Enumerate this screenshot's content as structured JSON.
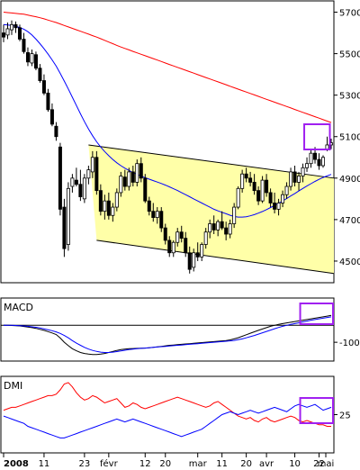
{
  "chart_data": [
    {
      "type": "candlestick",
      "panel": "price",
      "y_ticks": [
        4500,
        4700,
        4900,
        5100,
        5300,
        5500,
        5700
      ],
      "ylim": [
        4400,
        5750
      ],
      "bar_count": 82,
      "up_color": "#ffffff",
      "down_color": "#000000",
      "candles": [
        {
          "o": 5600,
          "h": 5640,
          "l": 5555,
          "c": 5580
        },
        {
          "o": 5590,
          "h": 5650,
          "l": 5570,
          "c": 5620
        },
        {
          "o": 5615,
          "h": 5660,
          "l": 5590,
          "c": 5640
        },
        {
          "o": 5640,
          "h": 5655,
          "l": 5600,
          "c": 5625
        },
        {
          "o": 5625,
          "h": 5640,
          "l": 5560,
          "c": 5570
        },
        {
          "o": 5570,
          "h": 5600,
          "l": 5500,
          "c": 5510
        },
        {
          "o": 5505,
          "h": 5530,
          "l": 5440,
          "c": 5460
        },
        {
          "o": 5455,
          "h": 5520,
          "l": 5440,
          "c": 5500
        },
        {
          "o": 5495,
          "h": 5510,
          "l": 5420,
          "c": 5430
        },
        {
          "o": 5430,
          "h": 5450,
          "l": 5360,
          "c": 5370
        },
        {
          "o": 5370,
          "h": 5400,
          "l": 5300,
          "c": 5310
        },
        {
          "o": 5310,
          "h": 5330,
          "l": 5220,
          "c": 5230
        },
        {
          "o": 5230,
          "h": 5260,
          "l": 5150,
          "c": 5160
        },
        {
          "o": 5150,
          "h": 5170,
          "l": 5080,
          "c": 5100
        },
        {
          "o": 5050,
          "h": 5070,
          "l": 4720,
          "c": 4750
        },
        {
          "o": 4760,
          "h": 4800,
          "l": 4520,
          "c": 4560
        },
        {
          "o": 4580,
          "h": 4880,
          "l": 4550,
          "c": 4850
        },
        {
          "o": 4860,
          "h": 4920,
          "l": 4830,
          "c": 4900
        },
        {
          "o": 4890,
          "h": 4950,
          "l": 4860,
          "c": 4870
        },
        {
          "o": 4870,
          "h": 4940,
          "l": 4790,
          "c": 4810
        },
        {
          "o": 4800,
          "h": 4920,
          "l": 4780,
          "c": 4900
        },
        {
          "o": 4900,
          "h": 4960,
          "l": 4870,
          "c": 4940
        },
        {
          "o": 4930,
          "h": 5030,
          "l": 4900,
          "c": 5000
        },
        {
          "o": 5000,
          "h": 5030,
          "l": 4820,
          "c": 4840
        },
        {
          "o": 4840,
          "h": 4870,
          "l": 4720,
          "c": 4740
        },
        {
          "o": 4740,
          "h": 4820,
          "l": 4700,
          "c": 4790
        },
        {
          "o": 4790,
          "h": 4830,
          "l": 4700,
          "c": 4720
        },
        {
          "o": 4720,
          "h": 4780,
          "l": 4690,
          "c": 4760
        },
        {
          "o": 4760,
          "h": 4850,
          "l": 4740,
          "c": 4830
        },
        {
          "o": 4830,
          "h": 4930,
          "l": 4810,
          "c": 4910
        },
        {
          "o": 4905,
          "h": 4940,
          "l": 4840,
          "c": 4860
        },
        {
          "o": 4860,
          "h": 4950,
          "l": 4840,
          "c": 4930
        },
        {
          "o": 4930,
          "h": 4960,
          "l": 4860,
          "c": 4880
        },
        {
          "o": 4880,
          "h": 4990,
          "l": 4860,
          "c": 4970
        },
        {
          "o": 4970,
          "h": 5000,
          "l": 4880,
          "c": 4900
        },
        {
          "o": 4900,
          "h": 4920,
          "l": 4780,
          "c": 4790
        },
        {
          "o": 4790,
          "h": 4810,
          "l": 4720,
          "c": 4740
        },
        {
          "o": 4740,
          "h": 4780,
          "l": 4690,
          "c": 4710
        },
        {
          "o": 4710,
          "h": 4760,
          "l": 4680,
          "c": 4740
        },
        {
          "o": 4740,
          "h": 4760,
          "l": 4640,
          "c": 4660
        },
        {
          "o": 4660,
          "h": 4680,
          "l": 4580,
          "c": 4600
        },
        {
          "o": 4600,
          "h": 4620,
          "l": 4520,
          "c": 4540
        },
        {
          "o": 4540,
          "h": 4600,
          "l": 4520,
          "c": 4590
        },
        {
          "o": 4590,
          "h": 4660,
          "l": 4570,
          "c": 4640
        },
        {
          "o": 4640,
          "h": 4670,
          "l": 4590,
          "c": 4610
        },
        {
          "o": 4610,
          "h": 4640,
          "l": 4520,
          "c": 4540
        },
        {
          "o": 4540,
          "h": 4570,
          "l": 4440,
          "c": 4460
        },
        {
          "o": 4470,
          "h": 4560,
          "l": 4450,
          "c": 4540
        },
        {
          "o": 4540,
          "h": 4590,
          "l": 4500,
          "c": 4520
        },
        {
          "o": 4520,
          "h": 4590,
          "l": 4500,
          "c": 4580
        },
        {
          "o": 4580,
          "h": 4660,
          "l": 4560,
          "c": 4640
        },
        {
          "o": 4640,
          "h": 4700,
          "l": 4610,
          "c": 4680
        },
        {
          "o": 4680,
          "h": 4720,
          "l": 4630,
          "c": 4650
        },
        {
          "o": 4650,
          "h": 4700,
          "l": 4620,
          "c": 4690
        },
        {
          "o": 4690,
          "h": 4740,
          "l": 4650,
          "c": 4660
        },
        {
          "o": 4660,
          "h": 4690,
          "l": 4600,
          "c": 4630
        },
        {
          "o": 4630,
          "h": 4700,
          "l": 4610,
          "c": 4680
        },
        {
          "o": 4680,
          "h": 4780,
          "l": 4660,
          "c": 4760
        },
        {
          "o": 4760,
          "h": 4860,
          "l": 4750,
          "c": 4850
        },
        {
          "o": 4850,
          "h": 4940,
          "l": 4830,
          "c": 4920
        },
        {
          "o": 4920,
          "h": 4950,
          "l": 4880,
          "c": 4900
        },
        {
          "o": 4900,
          "h": 4930,
          "l": 4860,
          "c": 4880
        },
        {
          "o": 4880,
          "h": 4920,
          "l": 4820,
          "c": 4840
        },
        {
          "o": 4840,
          "h": 4860,
          "l": 4770,
          "c": 4790
        },
        {
          "o": 4790,
          "h": 4910,
          "l": 4780,
          "c": 4890
        },
        {
          "o": 4890,
          "h": 4920,
          "l": 4810,
          "c": 4830
        },
        {
          "o": 4830,
          "h": 4850,
          "l": 4760,
          "c": 4780
        },
        {
          "o": 4780,
          "h": 4830,
          "l": 4730,
          "c": 4750
        },
        {
          "o": 4750,
          "h": 4800,
          "l": 4720,
          "c": 4780
        },
        {
          "o": 4780,
          "h": 4840,
          "l": 4760,
          "c": 4820
        },
        {
          "o": 4820,
          "h": 4880,
          "l": 4800,
          "c": 4860
        },
        {
          "o": 4860,
          "h": 4950,
          "l": 4840,
          "c": 4930
        },
        {
          "o": 4930,
          "h": 4960,
          "l": 4860,
          "c": 4880
        },
        {
          "o": 4880,
          "h": 4930,
          "l": 4840,
          "c": 4910
        },
        {
          "o": 4910,
          "h": 4970,
          "l": 4880,
          "c": 4950
        },
        {
          "o": 4950,
          "h": 5000,
          "l": 4930,
          "c": 4970
        },
        {
          "o": 4970,
          "h": 5040,
          "l": 4950,
          "c": 5020
        },
        {
          "o": 5020,
          "h": 5050,
          "l": 4970,
          "c": 4990
        },
        {
          "o": 4990,
          "h": 5020,
          "l": 4940,
          "c": 4960
        },
        {
          "o": 4960,
          "h": 5010,
          "l": 4950,
          "c": 5000
        },
        {
          "o": 5040,
          "h": 5100,
          "l": 5030,
          "c": 5060
        },
        {
          "o": 5060,
          "h": 5090,
          "l": 5040,
          "c": 5070
        }
      ],
      "series": [
        {
          "values": [
            5700,
            5698,
            5696,
            5694,
            5692,
            5690,
            5686,
            5682,
            5678,
            5673,
            5668,
            5662,
            5656,
            5650,
            5643,
            5636,
            5629,
            5622,
            5615,
            5608,
            5601,
            5594,
            5587,
            5580,
            5572,
            5564,
            5556,
            5548,
            5540,
            5532,
            5525,
            5518,
            5511,
            5504,
            5497,
            5490,
            5483,
            5476,
            5469,
            5462,
            5455,
            5448,
            5441,
            5434,
            5427,
            5420,
            5413,
            5406,
            5399,
            5392,
            5385,
            5378,
            5371,
            5364,
            5357,
            5350,
            5343,
            5336,
            5329,
            5322,
            5315,
            5308,
            5301,
            5294,
            5287,
            5280,
            5273,
            5266,
            5259,
            5252,
            5245,
            5238,
            5231,
            5224,
            5217,
            5210,
            5203,
            5196,
            5189,
            5182,
            5175,
            5168
          ],
          "color": "#ff0000"
        },
        {
          "values": [
            5640,
            5638,
            5636,
            5632,
            5626,
            5618,
            5606,
            5590,
            5570,
            5548,
            5524,
            5498,
            5470,
            5440,
            5405,
            5368,
            5330,
            5290,
            5250,
            5210,
            5172,
            5136,
            5104,
            5075,
            5050,
            5028,
            5008,
            4990,
            4974,
            4960,
            4948,
            4937,
            4927,
            4918,
            4910,
            4902,
            4895,
            4888,
            4881,
            4874,
            4866,
            4858,
            4849,
            4840,
            4830,
            4820,
            4810,
            4800,
            4790,
            4780,
            4770,
            4760,
            4750,
            4742,
            4735,
            4728,
            4721,
            4715,
            4712,
            4712,
            4714,
            4718,
            4724,
            4731,
            4739,
            4748,
            4758,
            4768,
            4779,
            4790,
            4802,
            4814,
            4826,
            4838,
            4850,
            4862,
            4873,
            4884,
            4894,
            4903,
            4911,
            4918
          ],
          "color": "#0000ff"
        }
      ],
      "channel": {
        "upper": [
          5060,
          4900
        ],
        "lower": [
          4600,
          4440
        ],
        "fill": "#ffffa8"
      },
      "highlight": {
        "range": [
          75,
          80
        ],
        "color": "#a020f0"
      }
    },
    {
      "type": "line",
      "panel": "macd",
      "title": "MACD",
      "y_ticks": [
        -100
      ],
      "ylim": [
        -200,
        150
      ],
      "zero_line": 0,
      "series": [
        {
          "values": [
            0,
            0,
            -1,
            -2,
            -4,
            -7,
            -10,
            -14,
            -18,
            -24,
            -30,
            -37,
            -45,
            -54,
            -75,
            -100,
            -120,
            -138,
            -150,
            -160,
            -166,
            -170,
            -172,
            -172,
            -170,
            -166,
            -160,
            -154,
            -148,
            -143,
            -140,
            -138,
            -137,
            -136,
            -135,
            -134,
            -132,
            -130,
            -127,
            -124,
            -121,
            -118,
            -116,
            -114,
            -112,
            -110,
            -108,
            -106,
            -104,
            -102,
            -100,
            -98,
            -96,
            -94,
            -92,
            -90,
            -86,
            -80,
            -73,
            -65,
            -56,
            -47,
            -38,
            -30,
            -22,
            -14,
            -6,
            0,
            5,
            10,
            14,
            18,
            22,
            26,
            30,
            34,
            38,
            42,
            46,
            50,
            54,
            58
          ],
          "color": "#000000"
        },
        {
          "values": [
            0,
            0,
            0,
            -1,
            -2,
            -4,
            -6,
            -9,
            -12,
            -16,
            -21,
            -26,
            -32,
            -39,
            -48,
            -60,
            -74,
            -90,
            -105,
            -118,
            -130,
            -140,
            -148,
            -154,
            -158,
            -160,
            -160,
            -158,
            -155,
            -151,
            -147,
            -143,
            -140,
            -138,
            -136,
            -134,
            -132,
            -130,
            -128,
            -126,
            -124,
            -122,
            -120,
            -118,
            -116,
            -114,
            -112,
            -110,
            -108,
            -106,
            -104,
            -102,
            -100,
            -98,
            -96,
            -94,
            -92,
            -89,
            -85,
            -80,
            -74,
            -67,
            -60,
            -52,
            -44,
            -36,
            -28,
            -20,
            -13,
            -6,
            0,
            5,
            10,
            15,
            20,
            25,
            30,
            34,
            38,
            42,
            46,
            50
          ],
          "color": "#0000ff"
        }
      ],
      "highlight": {
        "range": [
          74,
          81
        ],
        "color": "#a020f0"
      }
    },
    {
      "type": "line",
      "panel": "dmi",
      "title": "DMI",
      "y_ticks": [
        25
      ],
      "ylim": [
        0,
        50
      ],
      "series": [
        {
          "values": [
            28,
            29,
            30,
            30,
            31,
            32,
            33,
            34,
            35,
            36,
            37,
            38,
            38,
            39,
            42,
            46,
            47,
            44,
            40,
            37,
            35,
            36,
            38,
            37,
            35,
            33,
            34,
            35,
            36,
            33,
            30,
            31,
            33,
            32,
            30,
            29,
            30,
            31,
            32,
            33,
            34,
            35,
            36,
            37,
            36,
            35,
            34,
            33,
            32,
            31,
            30,
            31,
            33,
            34,
            32,
            30,
            28,
            26,
            24,
            23,
            22,
            23,
            21,
            20,
            22,
            23,
            21,
            20,
            21,
            22,
            23,
            24,
            23,
            21,
            20,
            21,
            20,
            19,
            18,
            18,
            17,
            17
          ],
          "color": "#ff0000"
        },
        {
          "values": [
            24,
            23,
            22,
            21,
            20,
            19,
            17,
            16,
            15,
            14,
            13,
            12,
            11,
            10,
            9,
            9,
            10,
            11,
            12,
            13,
            14,
            15,
            16,
            17,
            18,
            19,
            20,
            21,
            22,
            21,
            20,
            21,
            22,
            21,
            20,
            19,
            18,
            17,
            16,
            15,
            14,
            13,
            12,
            11,
            10,
            11,
            12,
            13,
            14,
            15,
            17,
            19,
            21,
            23,
            25,
            26,
            27,
            26,
            25,
            26,
            27,
            28,
            27,
            26,
            27,
            28,
            29,
            30,
            29,
            28,
            27,
            29,
            31,
            32,
            31,
            30,
            31,
            32,
            30,
            28,
            29,
            30
          ],
          "color": "#0000ff"
        }
      ],
      "highlight": {
        "range": [
          74,
          81
        ],
        "color": "#a020f0"
      }
    }
  ],
  "x_axis": {
    "labels": [
      {
        "text": "2008",
        "bar": 0,
        "bold": true
      },
      {
        "text": "11",
        "bar": 10
      },
      {
        "text": "23",
        "bar": 20
      },
      {
        "text": "févr",
        "bar": 26
      },
      {
        "text": "12",
        "bar": 35
      },
      {
        "text": "20",
        "bar": 40
      },
      {
        "text": "mar",
        "bar": 48
      },
      {
        "text": "11",
        "bar": 54
      },
      {
        "text": "20",
        "bar": 60
      },
      {
        "text": "avr",
        "bar": 65
      },
      {
        "text": "10",
        "bar": 72
      },
      {
        "text": "22",
        "bar": 78
      },
      {
        "text": "mai",
        "bar": 84
      }
    ]
  }
}
